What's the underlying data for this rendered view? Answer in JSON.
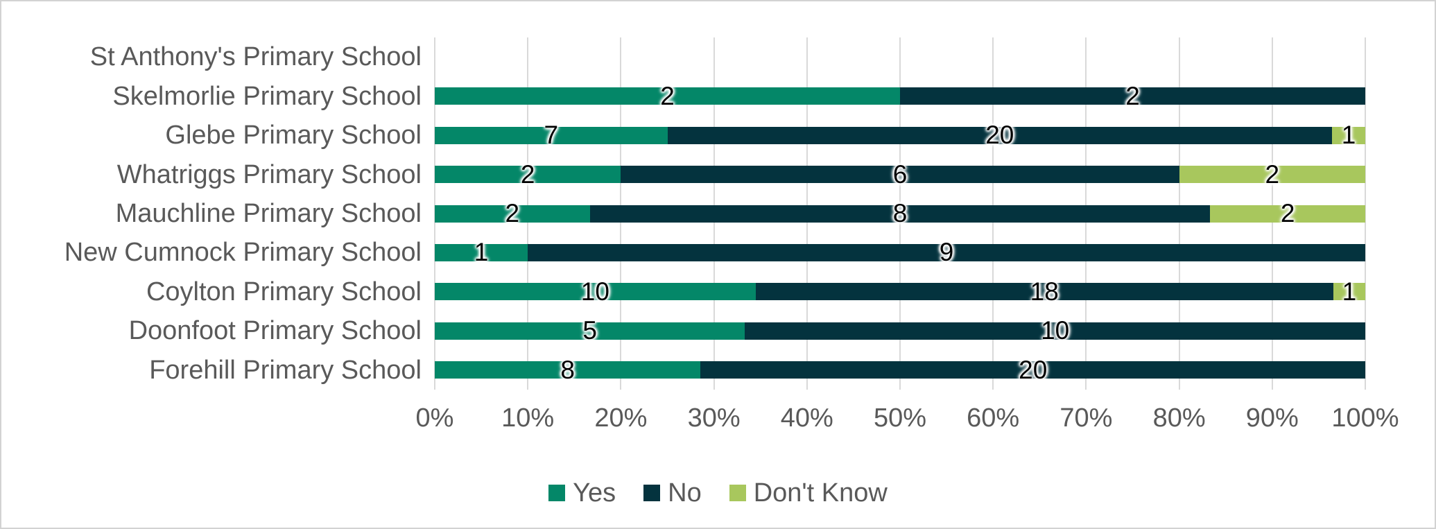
{
  "chart_data": {
    "type": "bar",
    "orientation": "horizontal",
    "stacked": "percent",
    "title": "",
    "xlabel": "",
    "ylabel": "",
    "categories": [
      "St Anthony's Primary School",
      "Skelmorlie Primary School",
      "Glebe Primary School",
      "Whatriggs Primary School",
      "Mauchline Primary School",
      "New Cumnock Primary School",
      "Coylton Primary School",
      "Doonfoot Primary School",
      "Forehill Primary School"
    ],
    "series": [
      {
        "name": "Yes",
        "color": "#048768",
        "values": [
          0,
          2,
          7,
          2,
          2,
          1,
          10,
          5,
          8
        ]
      },
      {
        "name": "No",
        "color": "#04333E",
        "values": [
          0,
          2,
          20,
          6,
          8,
          9,
          18,
          10,
          20
        ]
      },
      {
        "name": "Don't Know",
        "color": "#A8C75D",
        "values": [
          0,
          0,
          1,
          2,
          2,
          0,
          1,
          0,
          0
        ]
      }
    ],
    "x_axis": {
      "min": 0,
      "max": 1,
      "ticks": [
        "0%",
        "10%",
        "20%",
        "30%",
        "40%",
        "50%",
        "60%",
        "70%",
        "80%",
        "90%",
        "100%"
      ]
    },
    "legend": {
      "position": "bottom",
      "entries": [
        "Yes",
        "No",
        "Don't Know"
      ]
    },
    "grid": true,
    "data_labels": "shown on every non-zero segment, centered",
    "colors": {
      "gridline": "#D9D9D9",
      "axis_text": "#595959",
      "category_text": "#595959",
      "data_label_text": "#000000",
      "background": "#FFFFFF",
      "frame_border": "#D2D2D2"
    }
  }
}
